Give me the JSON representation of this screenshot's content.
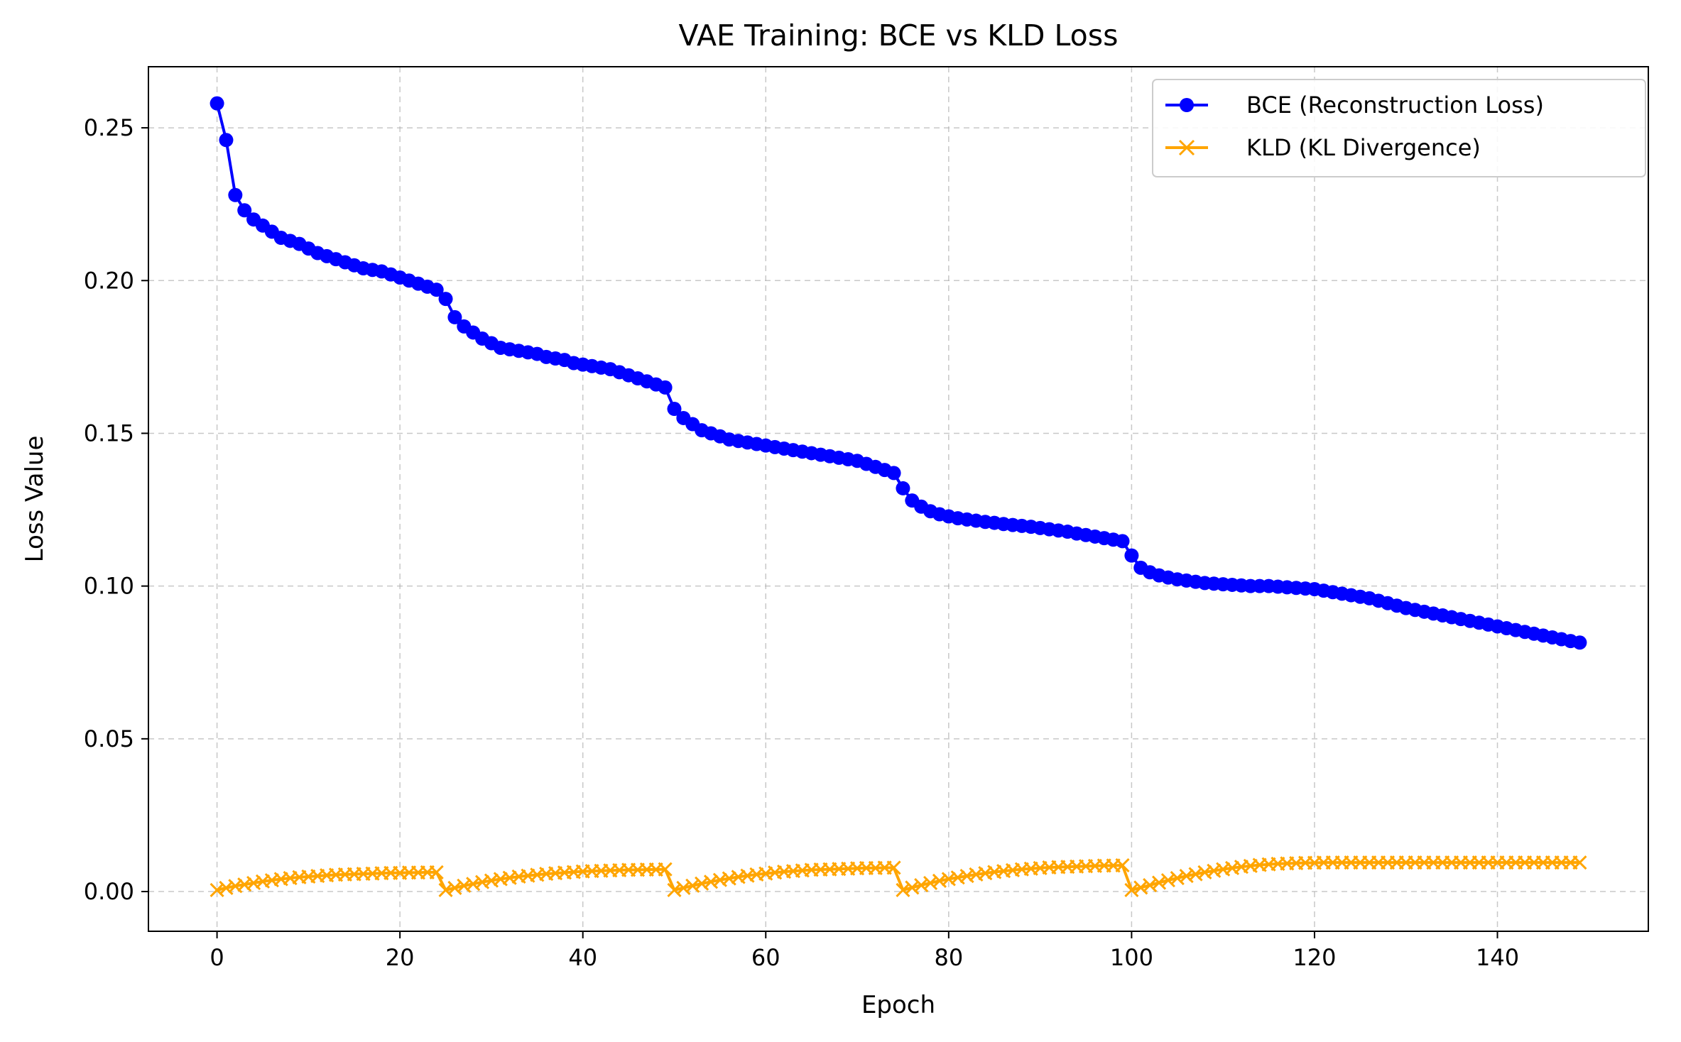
{
  "chart_data": {
    "type": "line",
    "title": "VAE Training: BCE vs KLD Loss",
    "xlabel": "Epoch",
    "ylabel": "Loss Value",
    "xlim": [
      -7.5,
      156.5
    ],
    "ylim": [
      -0.013,
      0.27
    ],
    "x_ticks": [
      0,
      20,
      40,
      60,
      80,
      100,
      120,
      140
    ],
    "y_ticks": [
      0.0,
      0.05,
      0.1,
      0.15,
      0.2,
      0.25
    ],
    "x_tick_labels": [
      "0",
      "20",
      "40",
      "60",
      "80",
      "100",
      "120",
      "140"
    ],
    "y_tick_labels": [
      "0.00",
      "0.05",
      "0.10",
      "0.15",
      "0.20",
      "0.25"
    ],
    "grid": true,
    "legend_position": "top-right",
    "x": {
      "start": 0,
      "end": 149,
      "step": 1
    },
    "series": [
      {
        "name": "BCE (Reconstruction Loss)",
        "color": "#0000ff",
        "marker": "circle",
        "values": [
          0.258,
          0.246,
          0.228,
          0.223,
          0.22,
          0.218,
          0.216,
          0.214,
          0.213,
          0.212,
          0.2105,
          0.209,
          0.208,
          0.207,
          0.206,
          0.205,
          0.204,
          0.2035,
          0.203,
          0.202,
          0.201,
          0.2,
          0.199,
          0.198,
          0.197,
          0.194,
          0.188,
          0.185,
          0.183,
          0.181,
          0.1795,
          0.178,
          0.1775,
          0.177,
          0.1765,
          0.176,
          0.175,
          0.1745,
          0.174,
          0.173,
          0.1725,
          0.172,
          0.1715,
          0.171,
          0.17,
          0.169,
          0.168,
          0.167,
          0.166,
          0.165,
          0.158,
          0.155,
          0.153,
          0.151,
          0.15,
          0.149,
          0.148,
          0.1475,
          0.147,
          0.1465,
          0.146,
          0.1455,
          0.145,
          0.1445,
          0.144,
          0.1435,
          0.143,
          0.1425,
          0.142,
          0.1415,
          0.141,
          0.14,
          0.139,
          0.138,
          0.137,
          0.132,
          0.128,
          0.126,
          0.1245,
          0.1235,
          0.1228,
          0.1222,
          0.1218,
          0.1214,
          0.121,
          0.1207,
          0.1203,
          0.12,
          0.1197,
          0.1194,
          0.119,
          0.1186,
          0.1182,
          0.1178,
          0.1172,
          0.1167,
          0.1162,
          0.1157,
          0.1152,
          0.1147,
          0.11,
          0.106,
          0.1045,
          0.1035,
          0.1028,
          0.1022,
          0.1018,
          0.1014,
          0.101,
          0.1008,
          0.1006,
          0.1004,
          0.1002,
          0.1,
          0.1,
          0.1,
          0.0998,
          0.0996,
          0.0994,
          0.0992,
          0.099,
          0.0985,
          0.098,
          0.0975,
          0.097,
          0.0965,
          0.096,
          0.0952,
          0.0944,
          0.0936,
          0.0928,
          0.0922,
          0.0916,
          0.091,
          0.0904,
          0.0898,
          0.0892,
          0.0886,
          0.088,
          0.0874,
          0.0868,
          0.0862,
          0.0856,
          0.085,
          0.0844,
          0.0838,
          0.0832,
          0.0826,
          0.082,
          0.0815
        ]
      },
      {
        "name": "KLD (KL Divergence)",
        "color": "#ffa500",
        "marker": "x",
        "values": [
          0.0005,
          0.0012,
          0.0018,
          0.0023,
          0.0028,
          0.0033,
          0.0037,
          0.0041,
          0.0044,
          0.0047,
          0.0049,
          0.0051,
          0.0053,
          0.0055,
          0.0056,
          0.0057,
          0.0058,
          0.0059,
          0.006,
          0.0061,
          0.0061,
          0.0062,
          0.0062,
          0.0063,
          0.0063,
          0.0005,
          0.0012,
          0.0019,
          0.0025,
          0.0031,
          0.0036,
          0.0041,
          0.0045,
          0.0049,
          0.0052,
          0.0055,
          0.0058,
          0.006,
          0.0062,
          0.0064,
          0.0066,
          0.0067,
          0.0068,
          0.0069,
          0.007,
          0.0071,
          0.0071,
          0.0072,
          0.0072,
          0.0073,
          0.0005,
          0.0012,
          0.0019,
          0.0026,
          0.0032,
          0.0038,
          0.0043,
          0.0048,
          0.0052,
          0.0056,
          0.0059,
          0.0062,
          0.0065,
          0.0067,
          0.0069,
          0.0071,
          0.0072,
          0.0073,
          0.0074,
          0.0075,
          0.0076,
          0.0077,
          0.0077,
          0.0078,
          0.0078,
          0.0005,
          0.0013,
          0.0021,
          0.0028,
          0.0035,
          0.0041,
          0.0046,
          0.0051,
          0.0056,
          0.006,
          0.0064,
          0.0067,
          0.007,
          0.0073,
          0.0075,
          0.0077,
          0.0079,
          0.008,
          0.0081,
          0.0082,
          0.0083,
          0.0084,
          0.0085,
          0.0085,
          0.0086,
          0.0005,
          0.0013,
          0.0021,
          0.0029,
          0.0037,
          0.0044,
          0.0051,
          0.0057,
          0.0063,
          0.0068,
          0.0073,
          0.0077,
          0.0081,
          0.0084,
          0.0087,
          0.0089,
          0.0091,
          0.0092,
          0.0093,
          0.0094,
          0.0094,
          0.0095,
          0.0095,
          0.0095,
          0.0095,
          0.0095,
          0.0095,
          0.0095,
          0.0095,
          0.0095,
          0.0095,
          0.0095,
          0.0095,
          0.0095,
          0.0095,
          0.0095,
          0.0095,
          0.0095,
          0.0095,
          0.0095,
          0.0095,
          0.0095,
          0.0095,
          0.0095,
          0.0095,
          0.0095,
          0.0095,
          0.0095,
          0.0095,
          0.0095
        ]
      }
    ]
  }
}
